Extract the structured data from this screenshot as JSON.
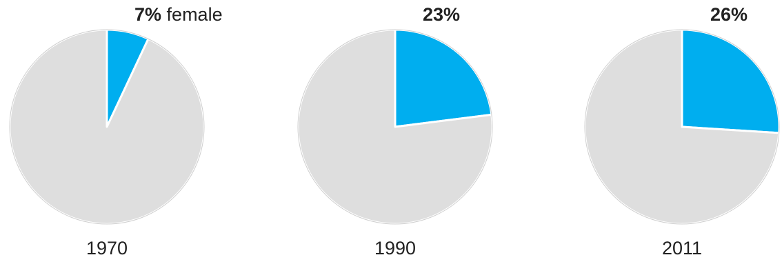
{
  "chart_data": [
    {
      "type": "pie",
      "category": "1970",
      "slices": [
        {
          "name": "female",
          "value": 7,
          "label": "7%",
          "color": "#00aeef"
        },
        {
          "name": "",
          "value": 93,
          "color": "#dedede"
        }
      ],
      "label_suffix": "female"
    },
    {
      "type": "pie",
      "category": "1990",
      "slices": [
        {
          "name": "female",
          "value": 23,
          "label": "23%",
          "color": "#00aeef"
        },
        {
          "name": "",
          "value": 77,
          "color": "#dedede"
        }
      ]
    },
    {
      "type": "pie",
      "category": "2011",
      "slices": [
        {
          "name": "female",
          "value": 26,
          "label": "26%",
          "color": "#00aeef"
        },
        {
          "name": "",
          "value": 74,
          "color": "#dedede"
        }
      ]
    }
  ],
  "colors": {
    "highlight": "#00aeef",
    "rest": "#dedede",
    "separator": "#ffffff",
    "text": "#222222"
  }
}
